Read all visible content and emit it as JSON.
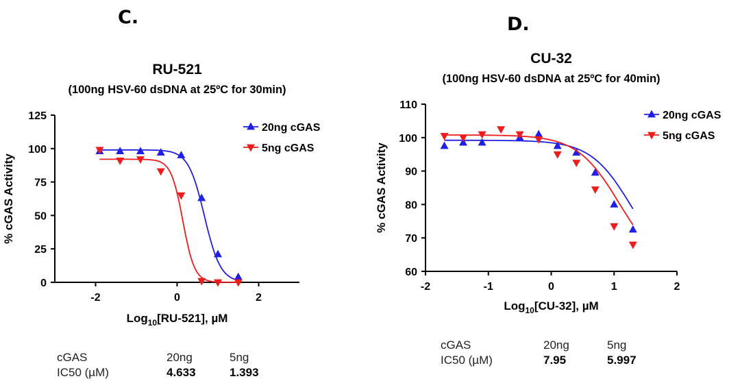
{
  "panels": {
    "c": {
      "letter": "C.",
      "ic50_table": {
        "header": [
          "cGAS",
          "20ng",
          "5ng"
        ],
        "row_label": "IC50 (µM)",
        "values": [
          "4.633",
          "1.393"
        ]
      }
    },
    "d": {
      "letter": "D.",
      "ic50_table": {
        "header": [
          "cGAS",
          "20ng",
          "5ng"
        ],
        "row_label": "IC50 (µM)",
        "values": [
          "7.95",
          "5.997"
        ]
      }
    }
  },
  "colors": {
    "blue": "#1f1fe6",
    "red": "#ee1c1c",
    "axis": "#000000"
  },
  "chart_data": [
    {
      "type": "scatter",
      "id": "c",
      "title": "RU-521",
      "subtitle": "(100ng HSV-60 dsDNA at 25ºC for 30min)",
      "xlabel_main": "Log",
      "xlabel_sub": "10",
      "xlabel_rest": "[RU-521], µM",
      "ylabel": "% cGAS Activity",
      "xlim": [
        -3,
        3
      ],
      "ylim": [
        0,
        125
      ],
      "xticks": [
        -2,
        0,
        2
      ],
      "yticks": [
        0,
        25,
        50,
        75,
        100,
        125
      ],
      "legend_position": "top-right",
      "series": [
        {
          "name": "20ng cGAS",
          "color": "#1f1fe6",
          "marker": "triangle-up",
          "x": [
            -1.9,
            -1.4,
            -0.9,
            -0.4,
            0.1,
            0.6,
            1.0,
            1.5
          ],
          "y": [
            98,
            98,
            98,
            97,
            95,
            63,
            21,
            4
          ],
          "fit": {
            "top": 99,
            "bottom": 0,
            "logIC50": 0.67,
            "hill": 2.2
          }
        },
        {
          "name": "5ng cGAS",
          "color": "#ee1c1c",
          "marker": "triangle-down",
          "x": [
            -1.9,
            -1.4,
            -0.9,
            -0.4,
            0.1,
            0.6,
            1.0,
            1.5
          ],
          "y": [
            99,
            91,
            92,
            83,
            65,
            1,
            0,
            0
          ],
          "fit": {
            "top": 92,
            "bottom": 0,
            "logIC50": 0.14,
            "hill": 3.0
          }
        }
      ]
    },
    {
      "type": "scatter",
      "id": "d",
      "title": "CU-32",
      "subtitle": "(100ng HSV-60 dsDNA at 25ºC for 40min)",
      "xlabel_main": "Log",
      "xlabel_sub": "10",
      "xlabel_rest": "[CU-32], µM",
      "ylabel": "% cGAS Activity",
      "xlim": [
        -2,
        2
      ],
      "ylim": [
        60,
        110
      ],
      "xticks": [
        -2,
        -1,
        0,
        1,
        2
      ],
      "yticks": [
        60,
        70,
        80,
        90,
        100,
        110
      ],
      "legend_position": "top-right",
      "series": [
        {
          "name": "20ng cGAS",
          "color": "#1f1fe6",
          "marker": "triangle-up",
          "x": [
            -1.7,
            -1.4,
            -1.1,
            -0.5,
            -0.2,
            0.1,
            0.4,
            0.7,
            1.0,
            1.3
          ],
          "y": [
            97.5,
            98.5,
            98.5,
            100,
            101,
            97.5,
            95.5,
            89.5,
            80,
            72.5
          ],
          "fit": {
            "top": 99.2,
            "bottom": 60,
            "logIC50": 1.27,
            "hill": 1.35
          }
        },
        {
          "name": "5ng cGAS",
          "color": "#ee1c1c",
          "marker": "triangle-down",
          "x": [
            -1.7,
            -1.4,
            -1.1,
            -0.8,
            -0.5,
            -0.2,
            0.1,
            0.4,
            0.7,
            1.0,
            1.3
          ],
          "y": [
            100.5,
            100,
            101,
            102.5,
            101,
            99.5,
            95,
            92.5,
            84.5,
            73.5,
            68
          ],
          "fit": {
            "top": 100.8,
            "bottom": 60,
            "logIC50": 1.08,
            "hill": 1.3
          }
        }
      ]
    }
  ]
}
